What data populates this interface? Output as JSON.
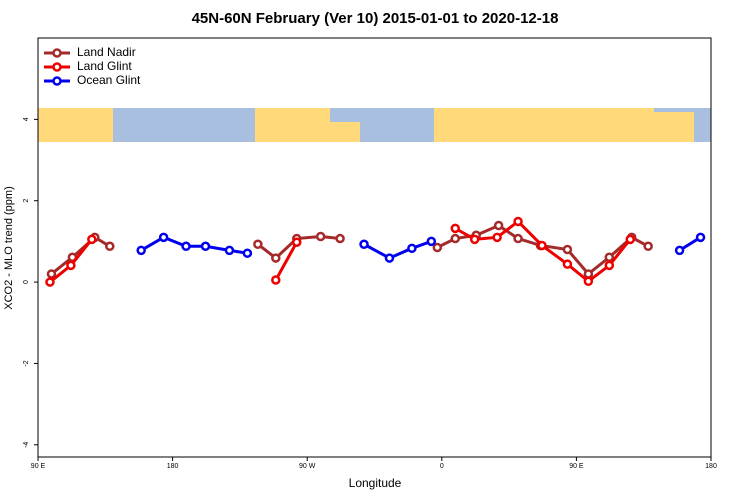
{
  "chart_data": {
    "type": "line",
    "title": "45N-60N February (Ver 10)   2015-01-01 to 2020-12-18",
    "x_label": "Longitude",
    "y_label": "XCO2 - MLO trend (ppm)",
    "xlim": [
      90,
      540
    ],
    "ylim": [
      -4.3,
      6
    ],
    "xticks": [
      {
        "value": 90,
        "label": "90 E"
      },
      180,
      {
        "value": 270,
        "label": "90 W"
      },
      {
        "value": 360,
        "label": "0"
      },
      {
        "value": 450,
        "label": "90 E"
      },
      {
        "value": 540,
        "label": "180"
      }
    ],
    "yticks": [
      4,
      2,
      0,
      -2,
      -4
    ],
    "legend": "top-left",
    "series": [
      {
        "name": "Land Nadir",
        "color": "#a52a2a",
        "x": [
          99,
          113,
          128,
          138,
          null,
          237,
          249,
          263,
          279,
          292,
          null,
          357,
          369,
          383,
          398,
          411,
          426,
          444,
          458,
          472,
          487,
          498
        ],
        "values": [
          0.2,
          0.61,
          1.1,
          0.88,
          null,
          0.93,
          0.59,
          1.07,
          1.12,
          1.07,
          null,
          0.85,
          1.07,
          1.15,
          1.39,
          1.07,
          0.9,
          0.8,
          0.2,
          0.61,
          1.1,
          0.88
        ]
      },
      {
        "name": "Land Glint",
        "color": "#ee0000",
        "x": [
          98,
          112,
          126,
          null,
          249,
          263,
          null,
          369,
          382,
          397,
          411,
          427,
          444,
          458,
          472,
          486
        ],
        "values": [
          0,
          0.41,
          1.05,
          null,
          0.05,
          0.98,
          null,
          1.32,
          1.05,
          1.1,
          1.49,
          0.9,
          0.44,
          0.02,
          0.41,
          1.05
        ]
      },
      {
        "name": "Ocean Glint",
        "color": "#0000ee",
        "x": [
          159,
          174,
          189,
          202,
          218,
          230,
          null,
          308,
          325,
          340,
          353,
          null,
          519,
          533
        ],
        "values": [
          0.78,
          1.1,
          0.88,
          0.88,
          0.78,
          0.71,
          null,
          0.93,
          0.59,
          0.83,
          1.0,
          null,
          0.78,
          1.1
        ]
      }
    ]
  }
}
